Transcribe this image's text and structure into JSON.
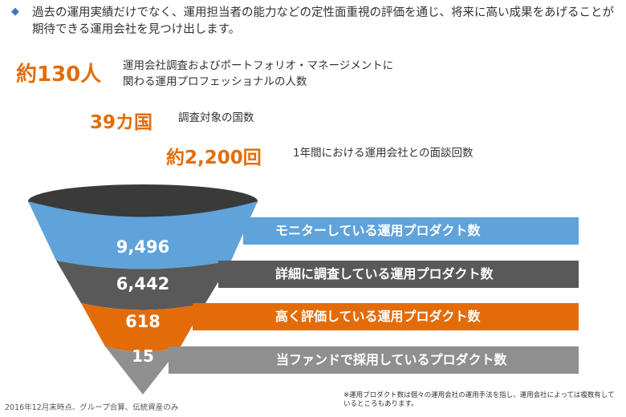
{
  "intro": {
    "bullet_icon": "diamond-icon",
    "text": "過去の運用実績だけでなく、運用担当者の能力などの定性面重視の評価を通じ、将来に高い成果をあげることが期待できる運用会社を見つけ出します。"
  },
  "stats": [
    {
      "value": "約130人",
      "desc_line1": "運用会社調査およびポートフォリオ・マネージメントに",
      "desc_line2": "関わる運用プロフェッショナルの人数"
    },
    {
      "value": "39カ国",
      "desc_line1": "調査対象の国数"
    },
    {
      "value": "約2,200回",
      "desc_line1": "1年間における運用会社との面談回数"
    }
  ],
  "funnel": {
    "levels": [
      {
        "value": "9,496",
        "label": "モニターしている運用プロダクト数",
        "color": "#5fa3da"
      },
      {
        "value": "6,442",
        "label": "詳細に調査している運用プロダクト数",
        "color": "#595959"
      },
      {
        "value": "618",
        "label": "高く評価している運用プロダクト数",
        "color": "#e36c09"
      },
      {
        "value": "15",
        "label": "当ファンドで採用しているプロダクト数",
        "color": "#8f8f8f"
      }
    ],
    "top_color": "#3a3a3a"
  },
  "notes": {
    "left": "2016年12月末時点、グループ合算、伝統資産のみ",
    "right": "※運用プロダクト数は個々の運用会社の運用手法を指し、運用会社によっては複数有しているところもあります。"
  },
  "colors": {
    "accent": "#e36c09",
    "bullet": "#3b78c4"
  }
}
